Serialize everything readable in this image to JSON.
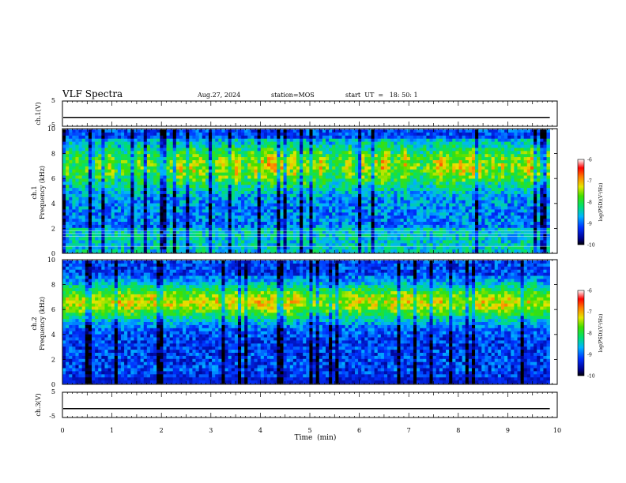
{
  "header": {
    "title": "VLF Spectra",
    "date": "Aug.27, 2024",
    "station": "station=MOS",
    "start": "start  UT  =   18: 50: 1"
  },
  "chart_data": [
    {
      "type": "line",
      "name": "ch1-waveform",
      "ylabel": "ch.1(V)",
      "ylim": [
        -5,
        5
      ],
      "yticks": [
        "5",
        "-5"
      ],
      "xlim": [
        0,
        10
      ],
      "baseline": -1.5
    },
    {
      "type": "heatmap",
      "name": "ch1-spectrogram",
      "ylabel": "ch.1\nFrequency (kHz)",
      "ylim": [
        0,
        10
      ],
      "yticks": [
        "0",
        "2",
        "4",
        "6",
        "8",
        "10"
      ],
      "xlim": [
        0,
        10
      ],
      "data_end_min": 9.85,
      "colorbar": {
        "label": "log(PSD)(V²/Hz)",
        "range": [
          -10,
          -6
        ],
        "ticks": [
          "-6",
          "-7",
          "-8",
          "-9",
          "-10"
        ]
      }
    },
    {
      "type": "heatmap",
      "name": "ch2-spectrogram",
      "ylabel": "ch.2\nFrequency (kHz)",
      "ylim": [
        0,
        10
      ],
      "yticks": [
        "0",
        "2",
        "4",
        "6",
        "8",
        "10"
      ],
      "xlim": [
        0,
        10
      ],
      "data_end_min": 9.85,
      "colorbar": {
        "label": "log(PSD)(V²/Hz)",
        "range": [
          -10,
          -6
        ],
        "ticks": [
          "-6",
          "-7",
          "-8",
          "-9",
          "-10"
        ]
      }
    },
    {
      "type": "line",
      "name": "ch3-waveform",
      "ylabel": "ch.3(V)",
      "ylim": [
        -5,
        5
      ],
      "yticks": [
        "5",
        "-5"
      ],
      "xlim": [
        0,
        10
      ],
      "baseline": -1.5
    }
  ],
  "xaxis": {
    "label": "Time  (min)",
    "ticks": [
      "0",
      "1",
      "2",
      "3",
      "4",
      "5",
      "6",
      "7",
      "8",
      "9",
      "10"
    ]
  }
}
